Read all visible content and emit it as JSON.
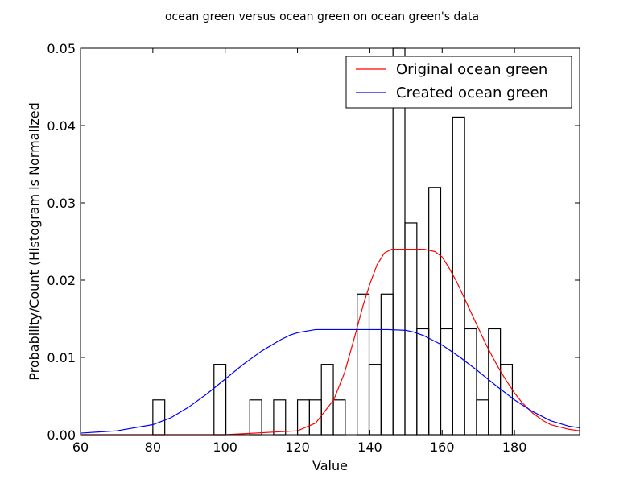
{
  "chart_data": {
    "type": "bar",
    "title": "ocean green versus ocean green on ocean green's data",
    "xlabel": "Value",
    "ylabel": "Probability/Count (Histogram is Normalized",
    "xlim": [
      60,
      198
    ],
    "ylim": [
      0,
      0.05
    ],
    "xticks": [
      60,
      80,
      100,
      120,
      140,
      160,
      180
    ],
    "yticks": [
      "0.00",
      "0.01",
      "0.02",
      "0.03",
      "0.04",
      "0.05"
    ],
    "grid": false,
    "legend_position": "top-right",
    "histogram": {
      "bin_width": 3.3,
      "bins": [
        {
          "x0": 80.0,
          "value": 0.0045
        },
        {
          "x0": 96.9,
          "value": 0.0091
        },
        {
          "x0": 106.8,
          "value": 0.0045
        },
        {
          "x0": 113.4,
          "value": 0.0045
        },
        {
          "x0": 120.0,
          "value": 0.0045
        },
        {
          "x0": 123.3,
          "value": 0.0045
        },
        {
          "x0": 126.6,
          "value": 0.0091
        },
        {
          "x0": 129.9,
          "value": 0.0045
        },
        {
          "x0": 136.5,
          "value": 0.0182
        },
        {
          "x0": 139.8,
          "value": 0.0091
        },
        {
          "x0": 143.1,
          "value": 0.0182
        },
        {
          "x0": 146.4,
          "value": 0.05
        },
        {
          "x0": 149.7,
          "value": 0.0274
        },
        {
          "x0": 153.0,
          "value": 0.0137
        },
        {
          "x0": 156.3,
          "value": 0.032
        },
        {
          "x0": 159.6,
          "value": 0.0137
        },
        {
          "x0": 162.9,
          "value": 0.0411
        },
        {
          "x0": 166.2,
          "value": 0.0137
        },
        {
          "x0": 169.5,
          "value": 0.0045
        },
        {
          "x0": 172.8,
          "value": 0.0137
        },
        {
          "x0": 176.1,
          "value": 0.0091
        }
      ]
    },
    "series": [
      {
        "name": "Original ocean green",
        "color": "#ff0000",
        "x": [
          60,
          100,
          120,
          125,
          130,
          133,
          136,
          138,
          140,
          142,
          144,
          146,
          150,
          155,
          158,
          160,
          162,
          164,
          166,
          168,
          170,
          172,
          174,
          176,
          178,
          180,
          182,
          185,
          188,
          190,
          195,
          198
        ],
        "y": [
          0.0,
          0.0,
          0.0005,
          0.0015,
          0.0045,
          0.008,
          0.013,
          0.0165,
          0.0195,
          0.022,
          0.0235,
          0.024,
          0.024,
          0.024,
          0.0237,
          0.023,
          0.0215,
          0.0198,
          0.0178,
          0.0158,
          0.0138,
          0.0118,
          0.01,
          0.0083,
          0.0068,
          0.0054,
          0.0042,
          0.0028,
          0.0018,
          0.0013,
          0.0007,
          0.0005
        ]
      },
      {
        "name": "Created ocean green",
        "color": "#0000ff",
        "x": [
          60,
          70,
          80,
          85,
          90,
          95,
          100,
          105,
          110,
          115,
          118,
          120,
          125,
          130,
          140,
          145,
          150,
          152,
          155,
          160,
          165,
          170,
          175,
          180,
          185,
          190,
          195,
          198
        ],
        "y": [
          0.0002,
          0.0005,
          0.0013,
          0.0022,
          0.0036,
          0.0053,
          0.0072,
          0.0091,
          0.0108,
          0.0122,
          0.0129,
          0.0132,
          0.0136,
          0.0136,
          0.0136,
          0.0136,
          0.0135,
          0.0133,
          0.0128,
          0.0116,
          0.01,
          0.0082,
          0.0063,
          0.0045,
          0.003,
          0.0018,
          0.0011,
          0.0009
        ]
      }
    ]
  }
}
